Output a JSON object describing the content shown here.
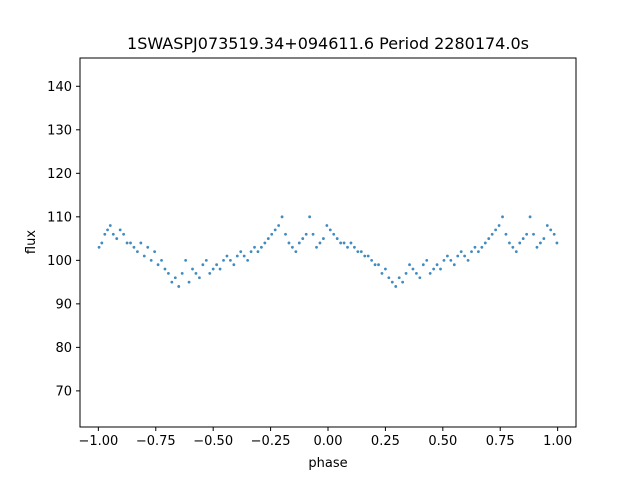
{
  "chart_data": {
    "type": "scatter",
    "title": "1SWASPJ073519.34+094611.6 Period 2280174.0s",
    "xlabel": "phase",
    "ylabel": "flux",
    "xlim": [
      -1.08,
      1.08
    ],
    "ylim": [
      61.7,
      146.5
    ],
    "xticks": [
      -1.0,
      -0.75,
      -0.5,
      -0.25,
      0.0,
      0.25,
      0.5,
      0.75,
      1.0
    ],
    "xtick_labels": [
      "−1.00",
      "−0.75",
      "−0.50",
      "−0.25",
      "0.00",
      "0.25",
      "0.50",
      "0.75",
      "1.00"
    ],
    "yticks": [
      70,
      80,
      90,
      100,
      110,
      120,
      130,
      140
    ],
    "ytick_labels": [
      "70",
      "80",
      "90",
      "100",
      "110",
      "120",
      "130",
      "140"
    ],
    "grid": false,
    "point_color": "#1f77b4",
    "series": [
      {
        "x": [
          -0.997,
          -0.985,
          -0.972,
          -0.96,
          -0.948,
          -0.935,
          -0.92,
          -0.905,
          -0.89,
          -0.875,
          -0.86,
          -0.845,
          -0.83,
          -0.815,
          -0.8,
          -0.785,
          -0.77,
          -0.755,
          -0.74,
          -0.725,
          -0.71,
          -0.695,
          -0.68,
          -0.665,
          -0.65,
          -0.635,
          -0.62,
          -0.605,
          -0.59,
          -0.575,
          -0.56,
          -0.545,
          -0.53,
          -0.515,
          -0.5,
          -0.485,
          -0.47,
          -0.455,
          -0.44,
          -0.425,
          -0.41,
          -0.395,
          -0.38,
          -0.365,
          -0.35,
          -0.335,
          -0.32,
          -0.305,
          -0.29,
          -0.275,
          -0.26,
          -0.245,
          -0.23,
          -0.215,
          -0.2,
          -0.185,
          -0.17,
          -0.155,
          -0.14,
          -0.125,
          -0.11,
          -0.095,
          -0.08,
          -0.065,
          -0.05,
          -0.035,
          -0.02,
          -0.005,
          0.01,
          0.025,
          0.04,
          0.055,
          0.07,
          0.085,
          0.1,
          0.115,
          0.13,
          0.145,
          0.16,
          0.175,
          0.19,
          0.205,
          0.22,
          0.235,
          0.25,
          0.265,
          0.28,
          0.295,
          0.31,
          0.325,
          0.34,
          0.355,
          0.37,
          0.385,
          0.4,
          0.415,
          0.43,
          0.445,
          0.46,
          0.475,
          0.49,
          0.505,
          0.52,
          0.535,
          0.55,
          0.565,
          0.58,
          0.595,
          0.61,
          0.625,
          0.64,
          0.655,
          0.67,
          0.685,
          0.7,
          0.715,
          0.73,
          0.745,
          0.76,
          0.775,
          0.79,
          0.805,
          0.82,
          0.835,
          0.85,
          0.865,
          0.88,
          0.895,
          0.91,
          0.925,
          0.94,
          0.955,
          0.97,
          0.985,
          0.997
        ],
        "y": [
          103,
          104,
          106,
          107,
          108,
          106,
          105,
          107,
          106,
          104,
          104,
          103,
          102,
          104,
          101,
          103,
          100,
          102,
          99,
          100,
          98,
          97,
          95,
          96,
          94,
          97,
          100,
          95,
          98,
          97,
          96,
          99,
          100,
          97,
          98,
          99,
          98,
          100,
          101,
          100,
          99,
          101,
          102,
          101,
          100,
          102,
          103,
          102,
          103,
          104,
          105,
          106,
          107,
          108,
          110,
          106,
          104,
          103,
          102,
          104,
          105,
          106,
          110,
          106,
          103,
          104,
          105,
          108,
          107,
          106,
          105,
          104,
          104,
          103,
          104,
          103,
          102,
          102,
          101,
          101,
          100,
          99,
          99,
          97,
          98,
          96,
          95,
          94,
          96,
          95,
          97,
          99,
          98,
          97,
          96,
          99,
          100,
          97,
          98,
          99,
          98,
          100,
          101,
          100,
          99,
          101,
          102,
          101,
          100,
          102,
          103,
          102,
          103,
          104,
          105,
          106,
          107,
          108,
          110,
          106,
          104,
          103,
          102,
          104,
          105,
          106,
          110,
          106,
          103,
          104,
          105,
          108,
          107,
          106,
          104
        ]
      }
    ]
  }
}
